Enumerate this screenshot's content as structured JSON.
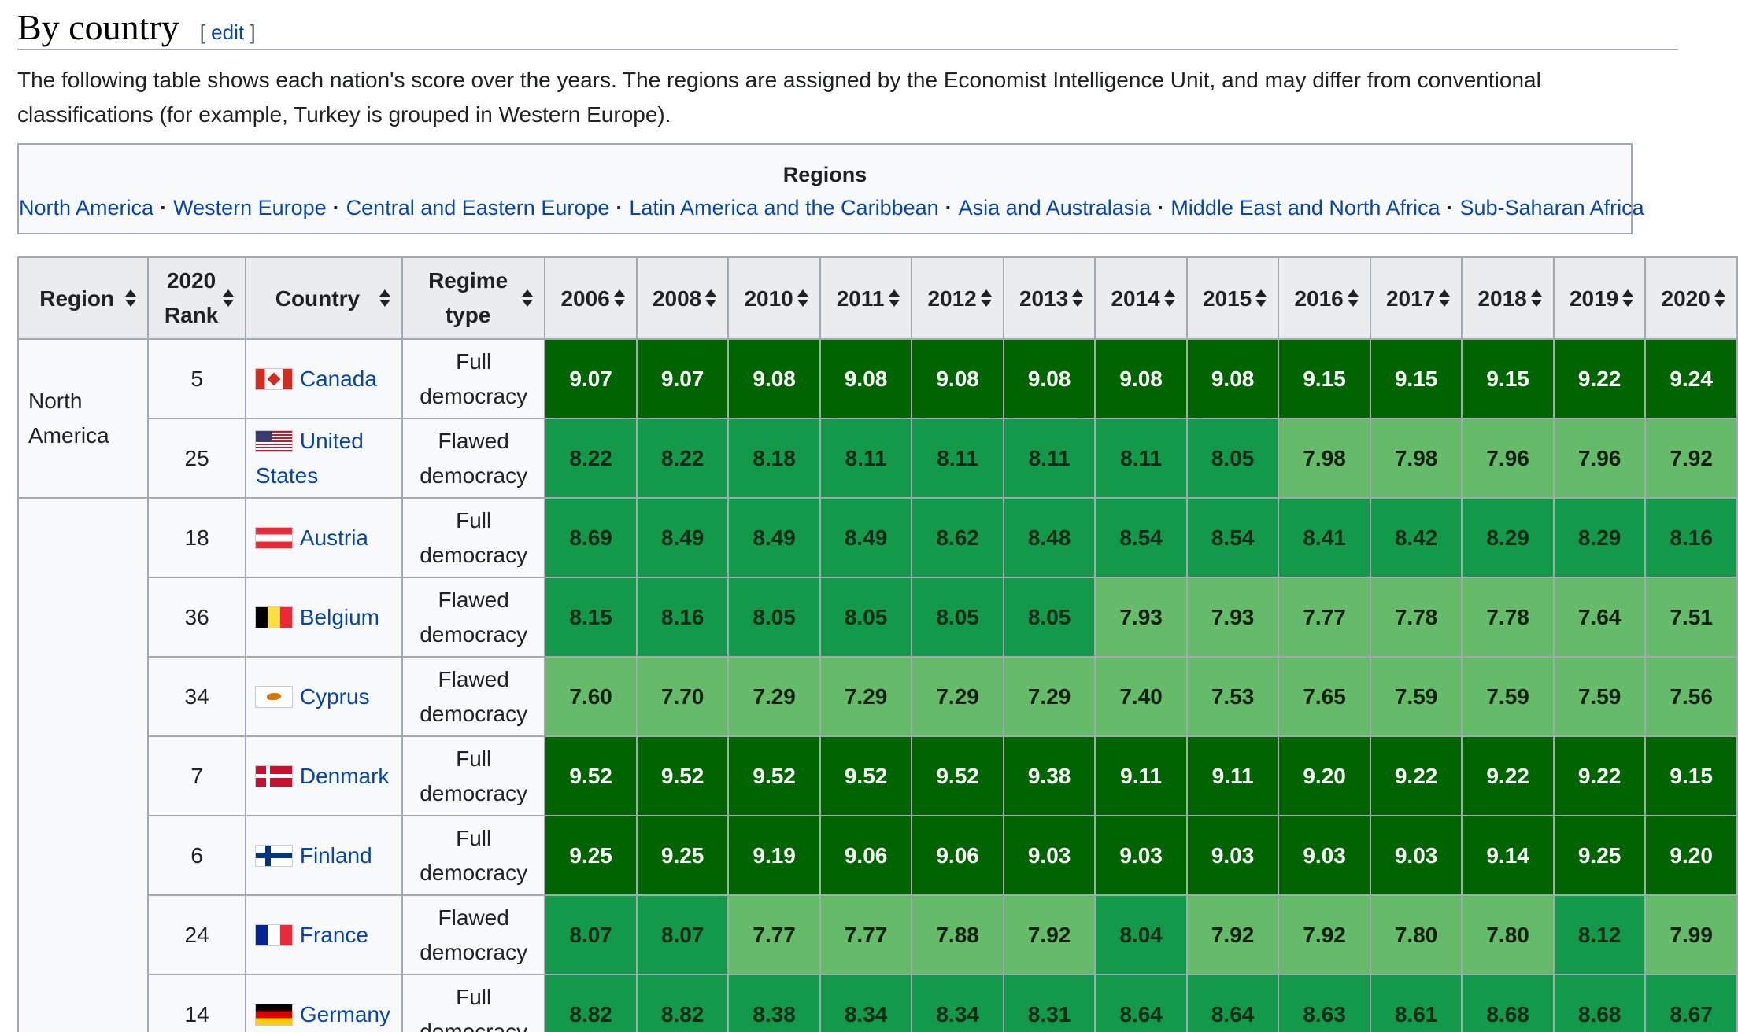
{
  "section": {
    "title": "By country",
    "edit_open": "[",
    "edit_label": "edit",
    "edit_close": "]"
  },
  "intro": "The following table shows each nation's score over the years. The regions are assigned by the Economist Intelligence Unit, and may differ from conventional classifications (for example, Turkey is grouped in Western Europe).",
  "navbox": {
    "title": "Regions",
    "links": [
      "North America",
      "Western Europe",
      "Central and Eastern Europe",
      "Latin America and the Caribbean",
      "Asia and Australasia",
      "Middle East and North Africa",
      "Sub-Saharan Africa"
    ],
    "separator": "·"
  },
  "table": {
    "headers": {
      "region": "Region",
      "rank_line1": "2020",
      "rank_line2": "Rank",
      "country": "Country",
      "regime_line1": "Regime",
      "regime_line2": "type",
      "years": [
        "2006",
        "2008",
        "2010",
        "2011",
        "2012",
        "2013",
        "2014",
        "2015",
        "2016",
        "2017",
        "2018",
        "2019",
        "2020"
      ]
    },
    "colors": {
      "full_democracy": "#006400",
      "score_8_9": "#129a4a",
      "score_7_8": "#66bb6a",
      "header_bg": "#eaecf0",
      "cell_bg": "#f8f9fa",
      "link": "#0645ad"
    },
    "region_groups": [
      {
        "label_line1": "North",
        "label_line2": "America",
        "rows": 2
      },
      {
        "label_line1": "",
        "label_line2": "",
        "rows": 7
      }
    ],
    "rows": [
      {
        "rank": "5",
        "country_line1": "Canada",
        "country_line2": "",
        "flag": "canada-flag-icon",
        "regime_line1": "Full",
        "regime_line2": "democracy",
        "scores": [
          "9.07",
          "9.07",
          "9.08",
          "9.08",
          "9.08",
          "9.08",
          "9.08",
          "9.08",
          "9.15",
          "9.15",
          "9.15",
          "9.22",
          "9.24"
        ]
      },
      {
        "rank": "25",
        "country_line1": "United",
        "country_line2": "States",
        "flag": "usa-flag-icon",
        "regime_line1": "Flawed",
        "regime_line2": "democracy",
        "scores": [
          "8.22",
          "8.22",
          "8.18",
          "8.11",
          "8.11",
          "8.11",
          "8.11",
          "8.05",
          "7.98",
          "7.98",
          "7.96",
          "7.96",
          "7.92"
        ]
      },
      {
        "rank": "18",
        "country_line1": "Austria",
        "country_line2": "",
        "flag": "austria-flag-icon",
        "regime_line1": "Full",
        "regime_line2": "democracy",
        "scores": [
          "8.69",
          "8.49",
          "8.49",
          "8.49",
          "8.62",
          "8.48",
          "8.54",
          "8.54",
          "8.41",
          "8.42",
          "8.29",
          "8.29",
          "8.16"
        ]
      },
      {
        "rank": "36",
        "country_line1": "Belgium",
        "country_line2": "",
        "flag": "belgium-flag-icon",
        "regime_line1": "Flawed",
        "regime_line2": "democracy",
        "scores": [
          "8.15",
          "8.16",
          "8.05",
          "8.05",
          "8.05",
          "8.05",
          "7.93",
          "7.93",
          "7.77",
          "7.78",
          "7.78",
          "7.64",
          "7.51"
        ]
      },
      {
        "rank": "34",
        "country_line1": "Cyprus",
        "country_line2": "",
        "flag": "cyprus-flag-icon",
        "regime_line1": "Flawed",
        "regime_line2": "democracy",
        "scores": [
          "7.60",
          "7.70",
          "7.29",
          "7.29",
          "7.29",
          "7.29",
          "7.40",
          "7.53",
          "7.65",
          "7.59",
          "7.59",
          "7.59",
          "7.56"
        ]
      },
      {
        "rank": "7",
        "country_line1": "Denmark",
        "country_line2": "",
        "flag": "denmark-flag-icon",
        "regime_line1": "Full",
        "regime_line2": "democracy",
        "scores": [
          "9.52",
          "9.52",
          "9.52",
          "9.52",
          "9.52",
          "9.38",
          "9.11",
          "9.11",
          "9.20",
          "9.22",
          "9.22",
          "9.22",
          "9.15"
        ]
      },
      {
        "rank": "6",
        "country_line1": "Finland",
        "country_line2": "",
        "flag": "finland-flag-icon",
        "regime_line1": "Full",
        "regime_line2": "democracy",
        "scores": [
          "9.25",
          "9.25",
          "9.19",
          "9.06",
          "9.06",
          "9.03",
          "9.03",
          "9.03",
          "9.03",
          "9.03",
          "9.14",
          "9.25",
          "9.20"
        ]
      },
      {
        "rank": "24",
        "country_line1": "France",
        "country_line2": "",
        "flag": "france-flag-icon",
        "regime_line1": "Flawed",
        "regime_line2": "democracy",
        "scores": [
          "8.07",
          "8.07",
          "7.77",
          "7.77",
          "7.88",
          "7.92",
          "8.04",
          "7.92",
          "7.92",
          "7.80",
          "7.80",
          "8.12",
          "7.99"
        ]
      },
      {
        "rank": "14",
        "country_line1": "Germany",
        "country_line2": "",
        "flag": "germany-flag-icon",
        "regime_line1": "Full",
        "regime_line2": "democracy",
        "scores": [
          "8.82",
          "8.82",
          "8.38",
          "8.34",
          "8.34",
          "8.31",
          "8.64",
          "8.64",
          "8.63",
          "8.61",
          "8.68",
          "8.68",
          "8.67"
        ]
      }
    ]
  }
}
